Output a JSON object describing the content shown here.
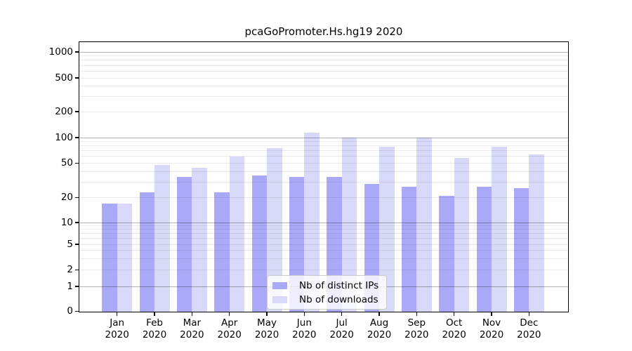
{
  "figure_title": "pcaGoPromoter.Hs.hg19 2020",
  "chart_data": {
    "type": "bar",
    "title": "pcaGoPromoter.Hs.hg19 2020",
    "categories": [
      "Jan 2020",
      "Feb 2020",
      "Mar 2020",
      "Apr 2020",
      "May 2020",
      "Jun 2020",
      "Jul 2020",
      "Aug 2020",
      "Sep 2020",
      "Oct 2020",
      "Nov 2020",
      "Dec 2020"
    ],
    "series": [
      {
        "name": "Nb of distinct IPs",
        "color": "#a9a9f7",
        "values": [
          17,
          23,
          35,
          23,
          36,
          35,
          35,
          29,
          27,
          21,
          27,
          26
        ]
      },
      {
        "name": "Nb of downloads",
        "color": "#d8d8f8",
        "values": [
          17,
          48,
          44,
          60,
          75,
          115,
          101,
          78,
          100,
          58,
          78,
          63
        ]
      }
    ],
    "xlabel": "",
    "ylabel": "",
    "yscale": "log-like with 0 baseline",
    "yticks": [
      0,
      1,
      2,
      5,
      10,
      20,
      50,
      100,
      200,
      500,
      1000
    ],
    "ylim": [
      0,
      1300
    ],
    "grid": true,
    "grid_minor": true,
    "legend_position": "lower center"
  },
  "legend": {
    "items": [
      {
        "label": "Nb of distinct IPs",
        "color": "#a9a9f7"
      },
      {
        "label": "Nb of downloads",
        "color": "#d8d8f8"
      }
    ]
  },
  "colors": {
    "distinct_ips_bar": "#a9a9f7",
    "downloads_bar": "#d8d8f8",
    "axis_frame": "#000000",
    "background": "#ffffff"
  }
}
